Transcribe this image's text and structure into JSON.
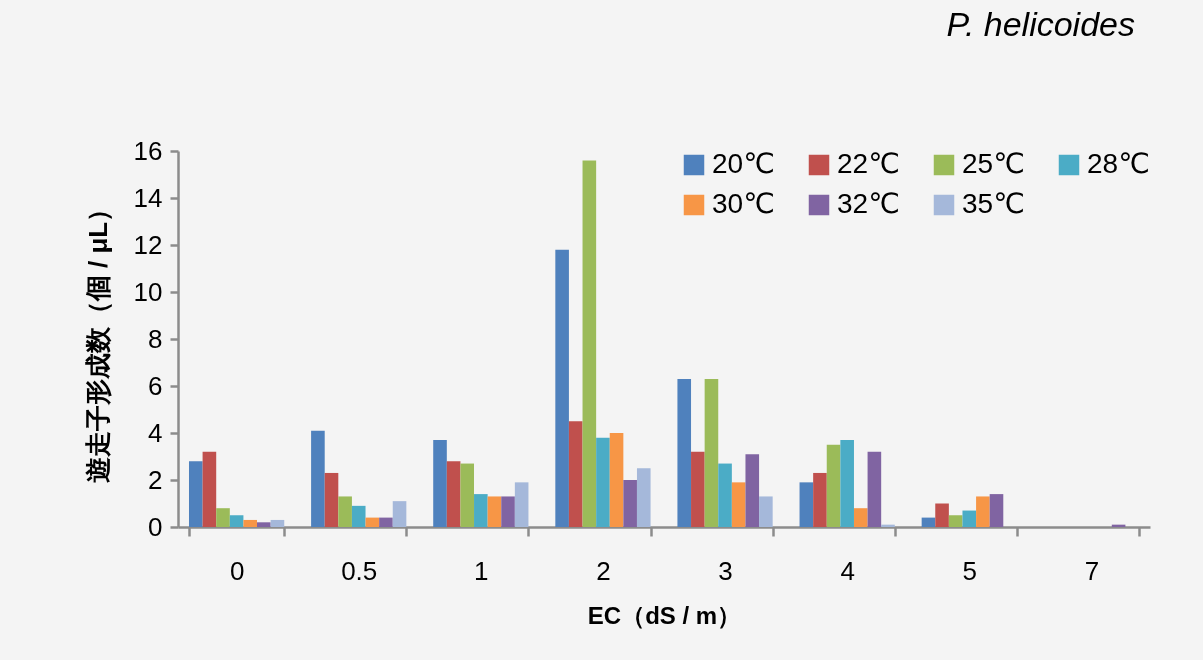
{
  "chart_data": {
    "type": "bar",
    "title": "P.  helicoides",
    "xlabel": "EC（dS / m）",
    "ylabel": "遊走子形成数（個 / μL）",
    "categories": [
      "0",
      "0.5",
      "1",
      "2",
      "3",
      "4",
      "5",
      "7"
    ],
    "series": [
      {
        "name": "20℃",
        "color": "#4f81bd",
        "values": [
          2.8,
          4.1,
          3.7,
          11.8,
          6.3,
          1.9,
          0.4,
          0
        ]
      },
      {
        "name": "22℃",
        "color": "#c0504d",
        "values": [
          3.2,
          2.3,
          2.8,
          4.5,
          3.2,
          2.3,
          1.0,
          0
        ]
      },
      {
        "name": "25℃",
        "color": "#9bbb59",
        "values": [
          0.8,
          1.3,
          2.7,
          15.6,
          6.3,
          3.5,
          0.5,
          0
        ]
      },
      {
        "name": "28℃",
        "color": "#4bacc6",
        "values": [
          0.5,
          0.9,
          1.4,
          3.8,
          2.7,
          3.7,
          0.7,
          0
        ]
      },
      {
        "name": "30℃",
        "color": "#f79646",
        "values": [
          0.3,
          0.4,
          1.3,
          4.0,
          1.9,
          0.8,
          1.3,
          0
        ]
      },
      {
        "name": "32℃",
        "color": "#8064a2",
        "values": [
          0.2,
          0.4,
          1.3,
          2.0,
          3.1,
          3.2,
          1.4,
          0.1
        ]
      },
      {
        "name": "35℃",
        "color": "#a5b8da",
        "values": [
          0.3,
          1.1,
          1.9,
          2.5,
          1.3,
          0.1,
          0,
          0
        ]
      }
    ],
    "ylim": [
      0,
      16
    ],
    "yticks": [
      0,
      2,
      4,
      6,
      8,
      10,
      12,
      14,
      16
    ],
    "legend": "top right"
  }
}
